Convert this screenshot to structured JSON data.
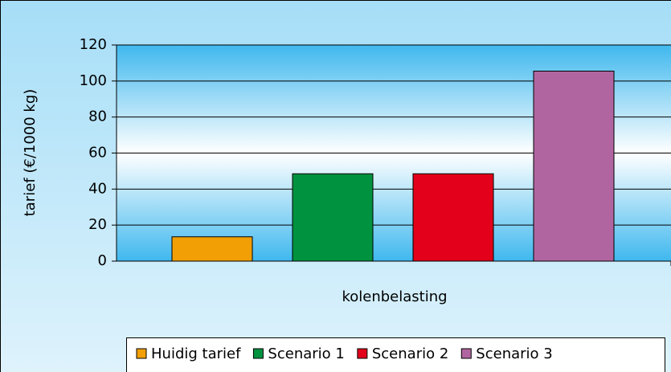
{
  "chart_data": {
    "type": "bar",
    "y_label": "tarief (€/1000 kg)",
    "x_label": "kolenbelasting",
    "categories": [
      "kolenbelasting"
    ],
    "series": [
      {
        "name": "Huidig tarief",
        "color": "#f29f05",
        "values": [
          13.5
        ]
      },
      {
        "name": "Scenario 1",
        "color": "#00923f",
        "values": [
          48.5
        ]
      },
      {
        "name": "Scenario 2",
        "color": "#e2001a",
        "values": [
          48.5
        ]
      },
      {
        "name": "Scenario 3",
        "color": "#b065a0",
        "values": [
          105.5
        ]
      }
    ],
    "ylim": [
      0,
      120
    ],
    "yticks": [
      0,
      20,
      40,
      60,
      80,
      100,
      120
    ],
    "grid": true,
    "legend": "bottom"
  }
}
